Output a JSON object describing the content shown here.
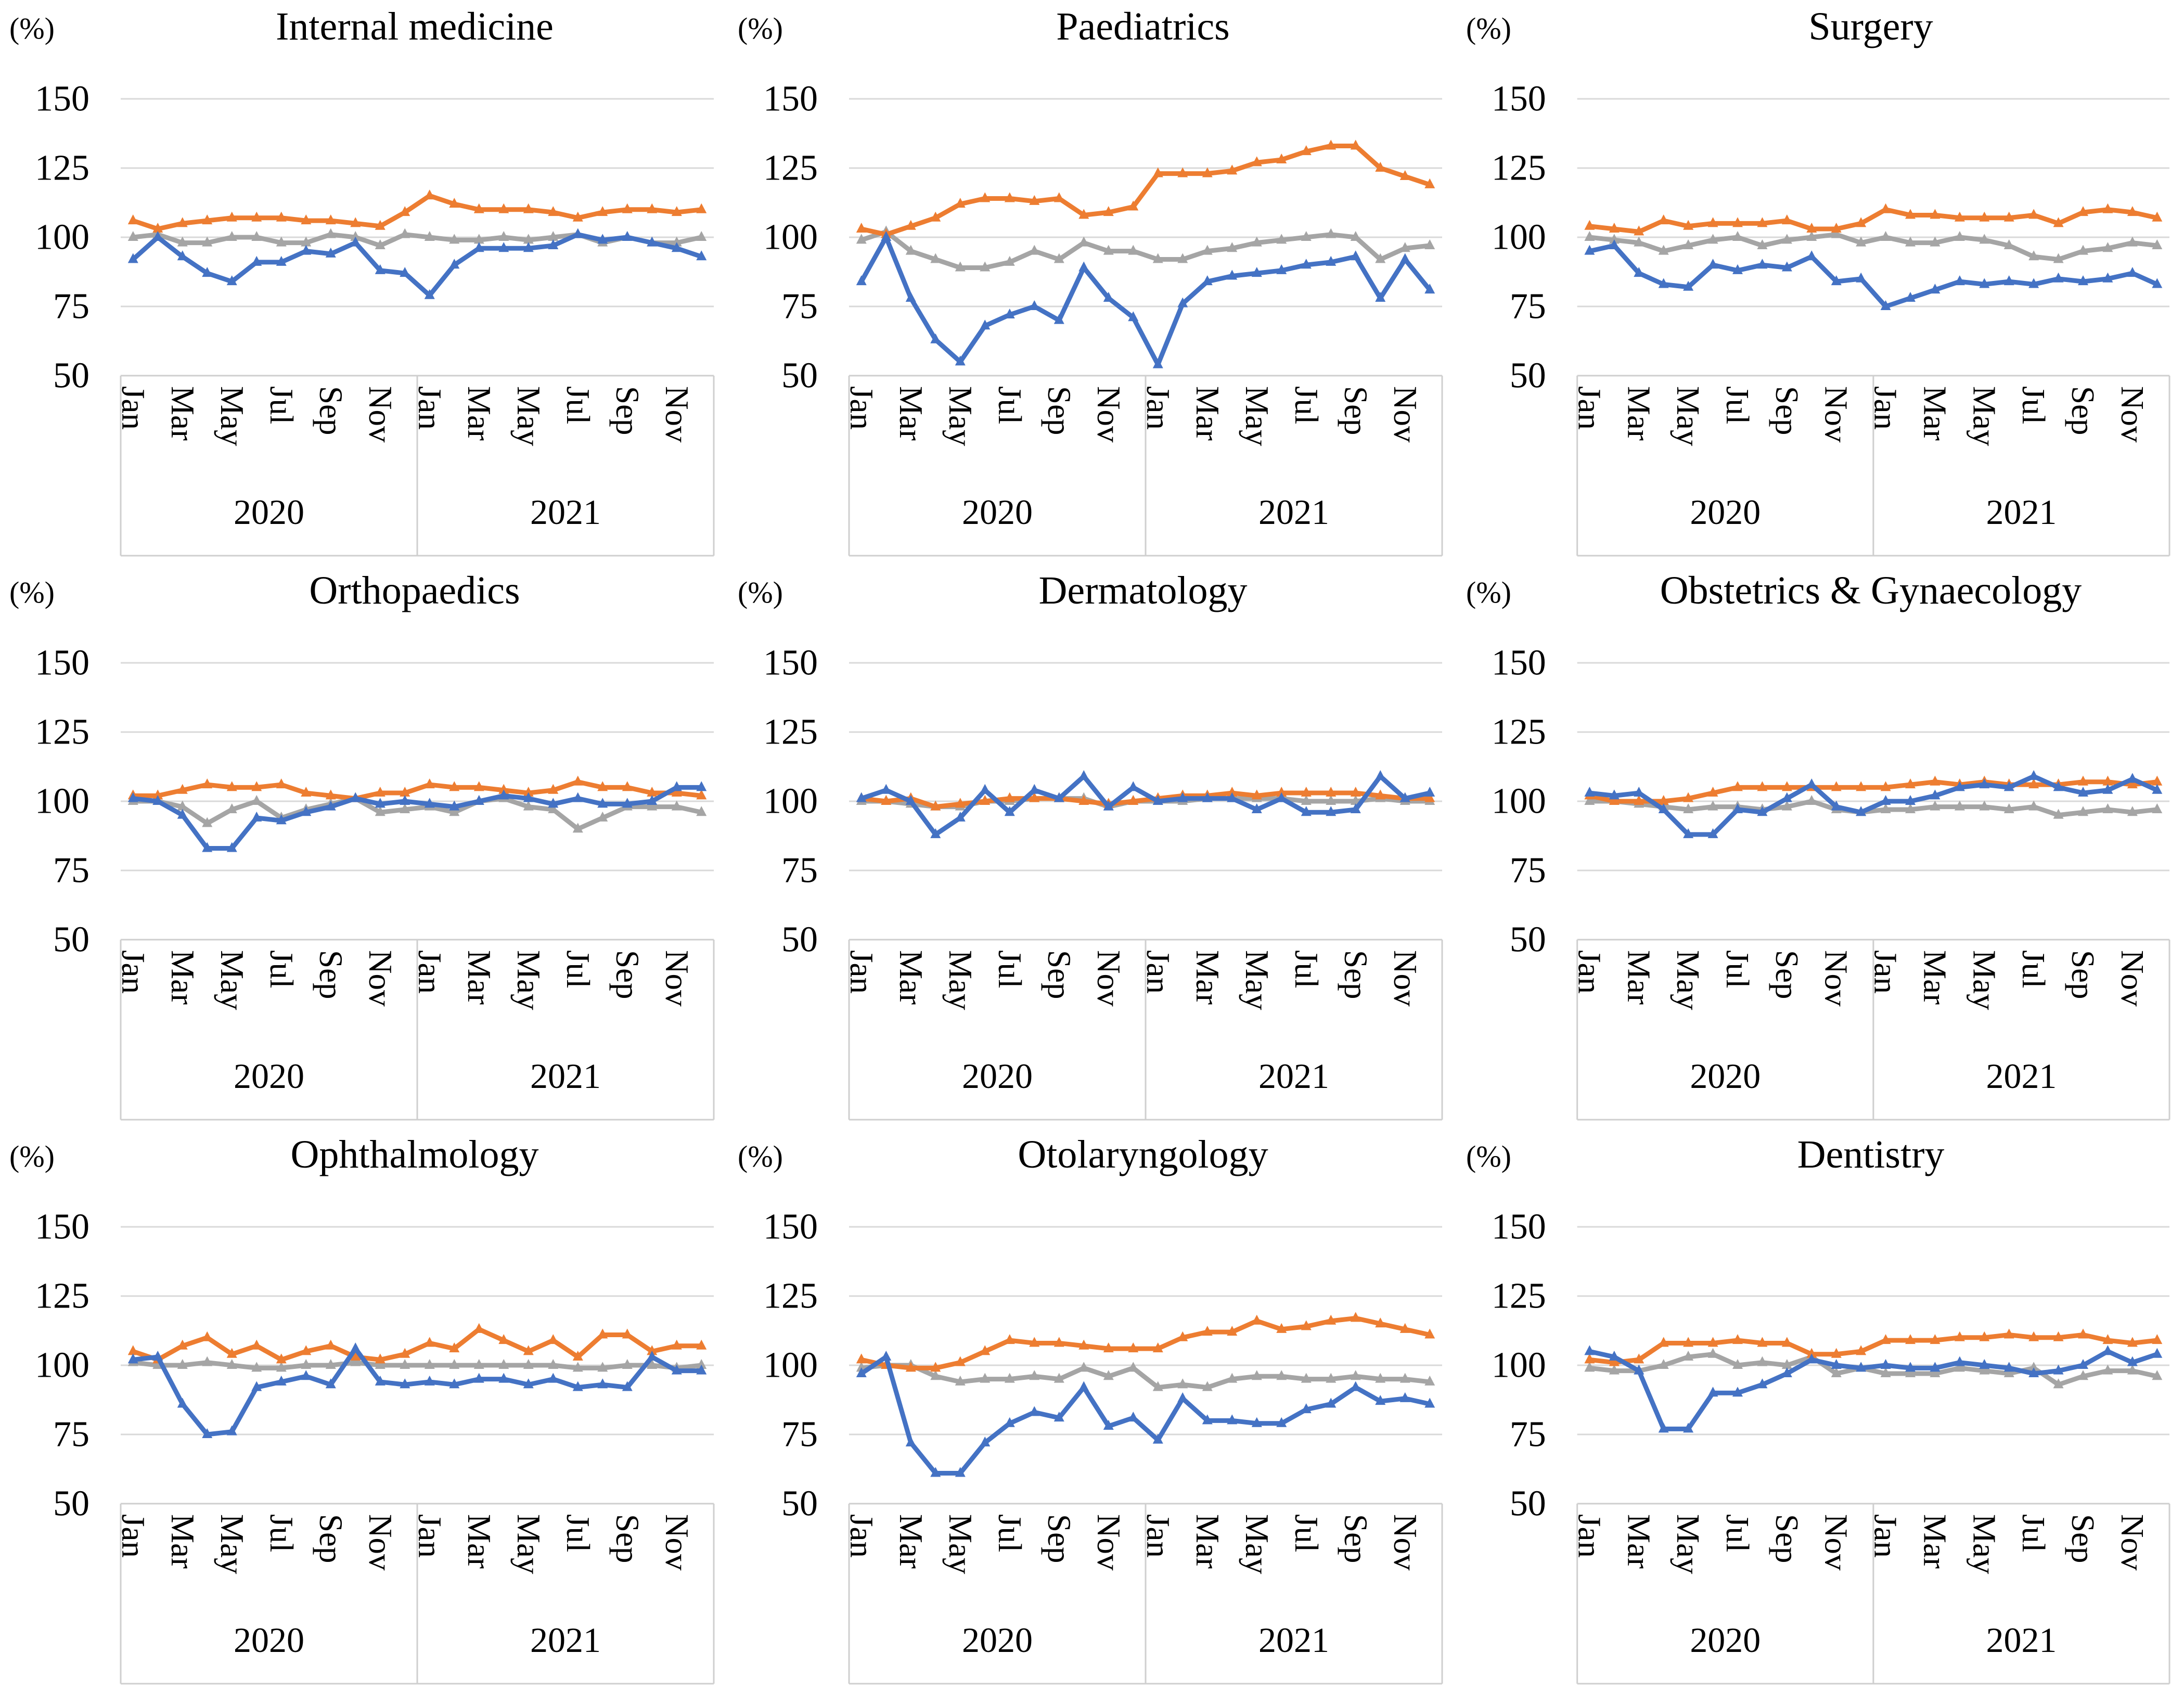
{
  "axis": {
    "unit_label": "(%)",
    "ylim": [
      50,
      150
    ],
    "yticks": [
      150,
      125,
      100,
      75,
      50
    ],
    "month_tick_labels": [
      "Jan",
      "Mar",
      "May",
      "Jul",
      "Sep",
      "Nov"
    ],
    "year_labels": [
      "2020",
      "2021"
    ],
    "points_per_series": 24,
    "grid_on": true,
    "legend": "none"
  },
  "colors": {
    "blue": "#4472C4",
    "orange": "#ED7D31",
    "gray": "#A5A5A5",
    "gridline": "#D9D9D9",
    "axis_box": "#CFCFCF",
    "text": "#000000"
  },
  "chart_data": [
    {
      "type": "line",
      "title": "Internal medicine",
      "series": [
        {
          "name": "gray",
          "color": "#A5A5A5",
          "values": [
            100,
            101,
            98,
            98,
            100,
            100,
            98,
            98,
            101,
            100,
            97,
            101,
            100,
            99,
            99,
            100,
            99,
            100,
            101,
            98,
            100,
            98,
            98,
            100
          ]
        },
        {
          "name": "orange",
          "color": "#ED7D31",
          "values": [
            106,
            103,
            105,
            106,
            107,
            107,
            107,
            106,
            106,
            105,
            104,
            109,
            115,
            112,
            110,
            110,
            110,
            109,
            107,
            109,
            110,
            110,
            109,
            110
          ]
        },
        {
          "name": "blue",
          "color": "#4472C4",
          "values": [
            92,
            100,
            93,
            87,
            84,
            91,
            91,
            95,
            94,
            98,
            88,
            87,
            79,
            90,
            96,
            96,
            96,
            97,
            101,
            99,
            100,
            98,
            96,
            93
          ]
        }
      ]
    },
    {
      "type": "line",
      "title": "Paediatrics",
      "series": [
        {
          "name": "gray",
          "color": "#A5A5A5",
          "values": [
            99,
            102,
            95,
            92,
            89,
            89,
            91,
            95,
            92,
            98,
            95,
            95,
            92,
            92,
            95,
            96,
            98,
            99,
            100,
            101,
            100,
            92,
            96,
            97
          ]
        },
        {
          "name": "orange",
          "color": "#ED7D31",
          "values": [
            103,
            101,
            104,
            107,
            112,
            114,
            114,
            113,
            114,
            108,
            109,
            111,
            123,
            123,
            123,
            124,
            127,
            128,
            131,
            133,
            133,
            125,
            122,
            119
          ]
        },
        {
          "name": "blue",
          "color": "#4472C4",
          "values": [
            84,
            100,
            78,
            63,
            55,
            68,
            72,
            75,
            70,
            89,
            78,
            71,
            54,
            76,
            84,
            86,
            87,
            88,
            90,
            91,
            93,
            78,
            92,
            81
          ]
        }
      ]
    },
    {
      "type": "line",
      "title": "Surgery",
      "series": [
        {
          "name": "gray",
          "color": "#A5A5A5",
          "values": [
            100,
            99,
            98,
            95,
            97,
            99,
            100,
            97,
            99,
            100,
            101,
            98,
            100,
            98,
            98,
            100,
            99,
            97,
            93,
            92,
            95,
            96,
            98,
            97
          ]
        },
        {
          "name": "orange",
          "color": "#ED7D31",
          "values": [
            104,
            103,
            102,
            106,
            104,
            105,
            105,
            105,
            106,
            103,
            103,
            105,
            110,
            108,
            108,
            107,
            107,
            107,
            108,
            105,
            109,
            110,
            109,
            107
          ]
        },
        {
          "name": "blue",
          "color": "#4472C4",
          "values": [
            95,
            97,
            87,
            83,
            82,
            90,
            88,
            90,
            89,
            93,
            84,
            85,
            75,
            78,
            81,
            84,
            83,
            84,
            83,
            85,
            84,
            85,
            87,
            83
          ]
        }
      ]
    },
    {
      "type": "line",
      "title": "Orthopaedics",
      "series": [
        {
          "name": "gray",
          "color": "#A5A5A5",
          "values": [
            100,
            100,
            98,
            92,
            97,
            100,
            94,
            97,
            99,
            101,
            96,
            97,
            98,
            96,
            100,
            101,
            98,
            97,
            90,
            94,
            98,
            98,
            98,
            96
          ]
        },
        {
          "name": "orange",
          "color": "#ED7D31",
          "values": [
            102,
            102,
            104,
            106,
            105,
            105,
            106,
            103,
            102,
            101,
            103,
            103,
            106,
            105,
            105,
            104,
            103,
            104,
            107,
            105,
            105,
            103,
            103,
            102
          ]
        },
        {
          "name": "blue",
          "color": "#4472C4",
          "values": [
            101,
            100,
            95,
            83,
            83,
            94,
            93,
            96,
            98,
            101,
            99,
            100,
            99,
            98,
            100,
            102,
            101,
            99,
            101,
            99,
            99,
            100,
            105,
            105
          ]
        }
      ]
    },
    {
      "type": "line",
      "title": "Dermatology",
      "series": [
        {
          "name": "gray",
          "color": "#A5A5A5",
          "values": [
            100,
            100,
            99,
            98,
            98,
            100,
            100,
            101,
            101,
            101,
            98,
            100,
            100,
            100,
            101,
            101,
            101,
            101,
            100,
            100,
            100,
            101,
            100,
            100
          ]
        },
        {
          "name": "orange",
          "color": "#ED7D31",
          "values": [
            101,
            100,
            101,
            98,
            99,
            100,
            101,
            101,
            101,
            100,
            99,
            100,
            101,
            102,
            102,
            103,
            102,
            103,
            103,
            103,
            103,
            102,
            101,
            101
          ]
        },
        {
          "name": "blue",
          "color": "#4472C4",
          "values": [
            101,
            104,
            100,
            88,
            94,
            104,
            96,
            104,
            101,
            109,
            98,
            105,
            100,
            101,
            101,
            101,
            97,
            101,
            96,
            96,
            97,
            109,
            101,
            103
          ]
        }
      ]
    },
    {
      "type": "line",
      "title": "Obstetrics & Gynaecology",
      "series": [
        {
          "name": "gray",
          "color": "#A5A5A5",
          "values": [
            100,
            100,
            99,
            98,
            97,
            98,
            98,
            97,
            98,
            100,
            97,
            96,
            97,
            97,
            98,
            98,
            98,
            97,
            98,
            95,
            96,
            97,
            96,
            97
          ]
        },
        {
          "name": "orange",
          "color": "#ED7D31",
          "values": [
            102,
            100,
            100,
            100,
            101,
            103,
            105,
            105,
            105,
            105,
            105,
            105,
            105,
            106,
            107,
            106,
            107,
            106,
            106,
            106,
            107,
            107,
            106,
            107
          ]
        },
        {
          "name": "blue",
          "color": "#4472C4",
          "values": [
            103,
            102,
            103,
            97,
            88,
            88,
            97,
            96,
            101,
            106,
            98,
            96,
            100,
            100,
            102,
            105,
            106,
            105,
            109,
            105,
            103,
            104,
            108,
            104
          ]
        }
      ]
    },
    {
      "type": "line",
      "title": "Ophthalmology",
      "series": [
        {
          "name": "gray",
          "color": "#A5A5A5",
          "values": [
            101,
            100,
            100,
            101,
            100,
            99,
            99,
            100,
            100,
            101,
            100,
            100,
            100,
            100,
            100,
            100,
            100,
            100,
            99,
            99,
            100,
            100,
            99,
            100
          ]
        },
        {
          "name": "orange",
          "color": "#ED7D31",
          "values": [
            105,
            102,
            107,
            110,
            104,
            107,
            102,
            105,
            107,
            103,
            102,
            104,
            108,
            106,
            113,
            109,
            105,
            109,
            103,
            111,
            111,
            105,
            107,
            107
          ]
        },
        {
          "name": "blue",
          "color": "#4472C4",
          "values": [
            102,
            103,
            86,
            75,
            76,
            92,
            94,
            96,
            93,
            106,
            94,
            93,
            94,
            93,
            95,
            95,
            93,
            95,
            92,
            93,
            92,
            103,
            98,
            98
          ]
        }
      ]
    },
    {
      "type": "line",
      "title": "Otolaryngology",
      "series": [
        {
          "name": "gray",
          "color": "#A5A5A5",
          "values": [
            99,
            100,
            100,
            96,
            94,
            95,
            95,
            96,
            95,
            99,
            96,
            99,
            92,
            93,
            92,
            95,
            96,
            96,
            95,
            95,
            96,
            95,
            95,
            94
          ]
        },
        {
          "name": "orange",
          "color": "#ED7D31",
          "values": [
            102,
            100,
            99,
            99,
            101,
            105,
            109,
            108,
            108,
            107,
            106,
            106,
            106,
            110,
            112,
            112,
            116,
            113,
            114,
            116,
            117,
            115,
            113,
            111
          ]
        },
        {
          "name": "blue",
          "color": "#4472C4",
          "values": [
            97,
            103,
            72,
            61,
            61,
            72,
            79,
            83,
            81,
            92,
            78,
            81,
            73,
            88,
            80,
            80,
            79,
            79,
            84,
            86,
            92,
            87,
            88,
            86
          ]
        }
      ]
    },
    {
      "type": "line",
      "title": "Dentistry",
      "series": [
        {
          "name": "gray",
          "color": "#A5A5A5",
          "values": [
            99,
            98,
            98,
            100,
            103,
            104,
            100,
            101,
            100,
            103,
            97,
            99,
            97,
            97,
            97,
            99,
            98,
            97,
            99,
            93,
            96,
            98,
            98,
            96
          ]
        },
        {
          "name": "orange",
          "color": "#ED7D31",
          "values": [
            102,
            101,
            102,
            108,
            108,
            108,
            109,
            108,
            108,
            104,
            104,
            105,
            109,
            109,
            109,
            110,
            110,
            111,
            110,
            110,
            111,
            109,
            108,
            109
          ]
        },
        {
          "name": "blue",
          "color": "#4472C4",
          "values": [
            105,
            103,
            98,
            77,
            77,
            90,
            90,
            93,
            97,
            102,
            100,
            99,
            100,
            99,
            99,
            101,
            100,
            99,
            97,
            98,
            100,
            105,
            101,
            104
          ]
        }
      ]
    }
  ]
}
